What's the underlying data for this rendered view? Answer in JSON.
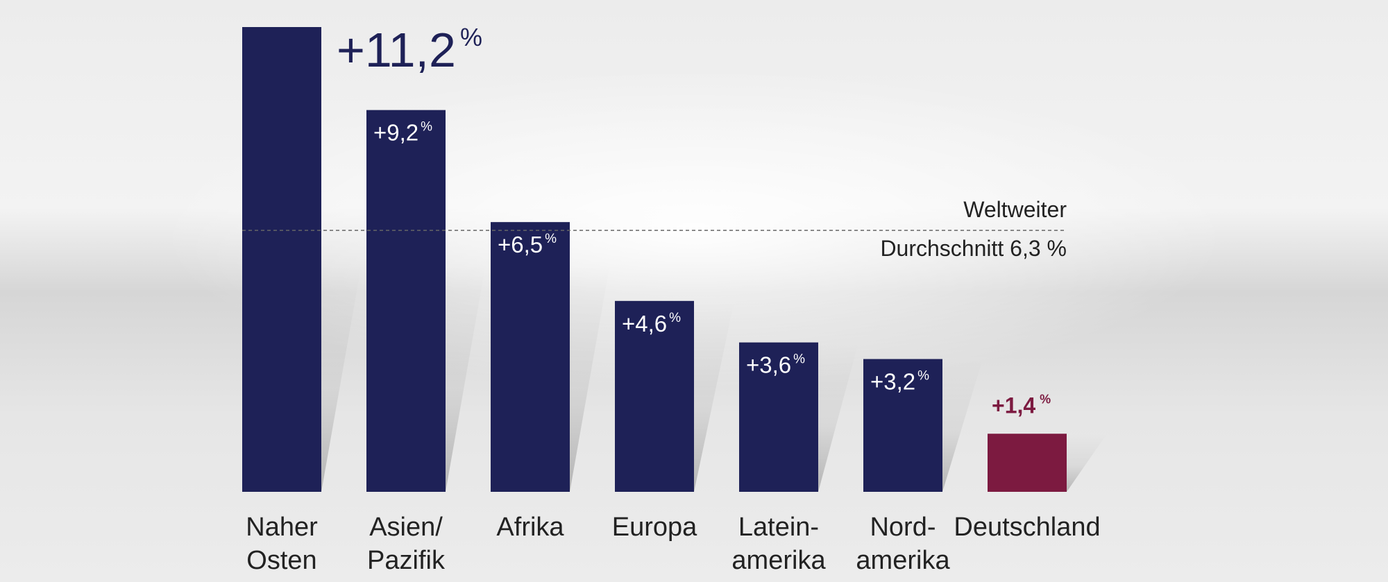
{
  "chart_data": {
    "type": "bar",
    "categories": [
      "Naher\nOsten",
      "Asien/\nPazifik",
      "Afrika",
      "Europa",
      "Latein-\namerika",
      "Nord-\namerika",
      "Deutschland"
    ],
    "values": [
      11.2,
      9.2,
      6.5,
      4.6,
      3.6,
      3.2,
      1.4
    ],
    "value_labels": [
      "+11,2",
      "+9,2",
      "+6,5",
      "+4,6",
      "+3,6",
      "+3,2",
      "+1,4"
    ],
    "unit": "%",
    "ylim": [
      0,
      11.2
    ],
    "reference_line": {
      "value": 6.3,
      "label_line1": "Weltweiter",
      "label_line2": "Durchschnitt 6,3 %"
    },
    "colors": {
      "bar": "#1e2157",
      "highlight": "#7c1a40",
      "text": "#222222",
      "line": "#666666"
    },
    "highlight_index": 6,
    "grid": false,
    "legend": "none"
  }
}
